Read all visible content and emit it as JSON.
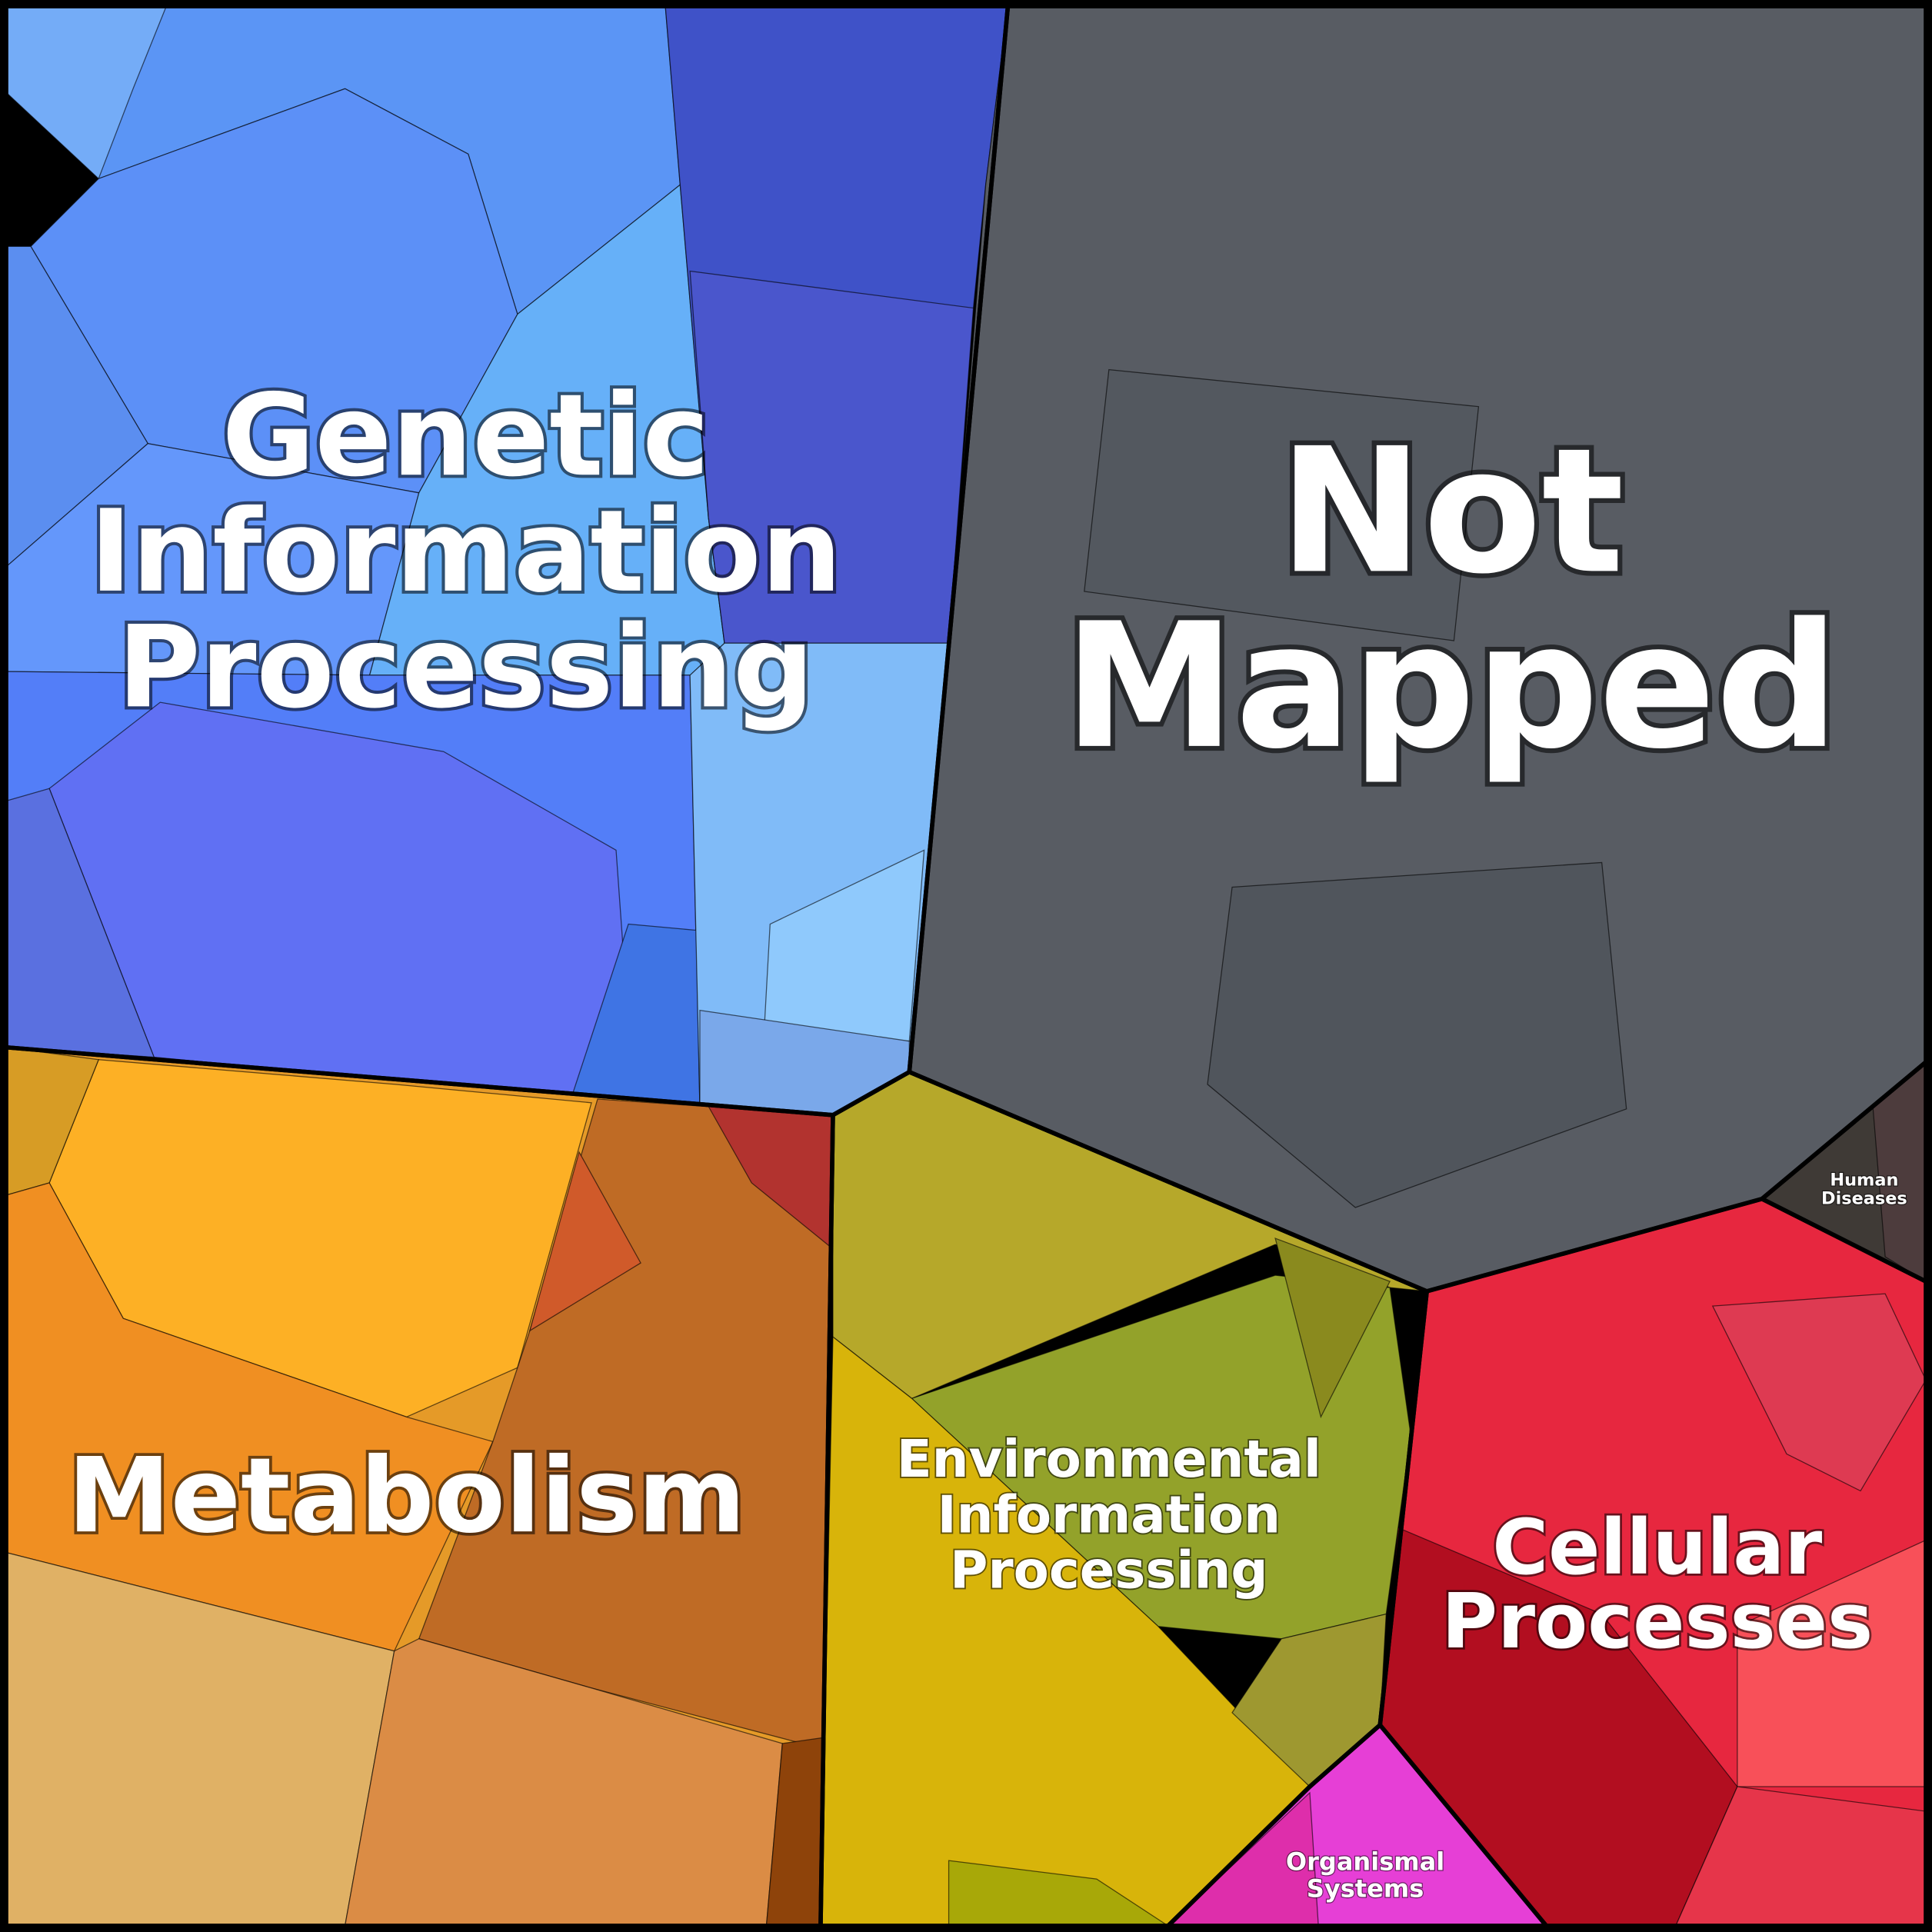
{
  "regions": [
    {
      "label_lines": [
        "Genetic",
        "Information",
        "Processing"
      ]
    },
    {
      "label_lines": [
        "Not",
        "Mapped"
      ]
    },
    {
      "label_lines": [
        "Human",
        "Diseases"
      ]
    },
    {
      "label_lines": [
        "Metabolism"
      ]
    },
    {
      "label_lines": [
        "Environmental",
        "Information",
        "Processing"
      ]
    },
    {
      "label_lines": [
        "Cellular",
        "Processes"
      ]
    },
    {
      "label_lines": [
        "Organismal",
        "Systems"
      ]
    }
  ]
}
